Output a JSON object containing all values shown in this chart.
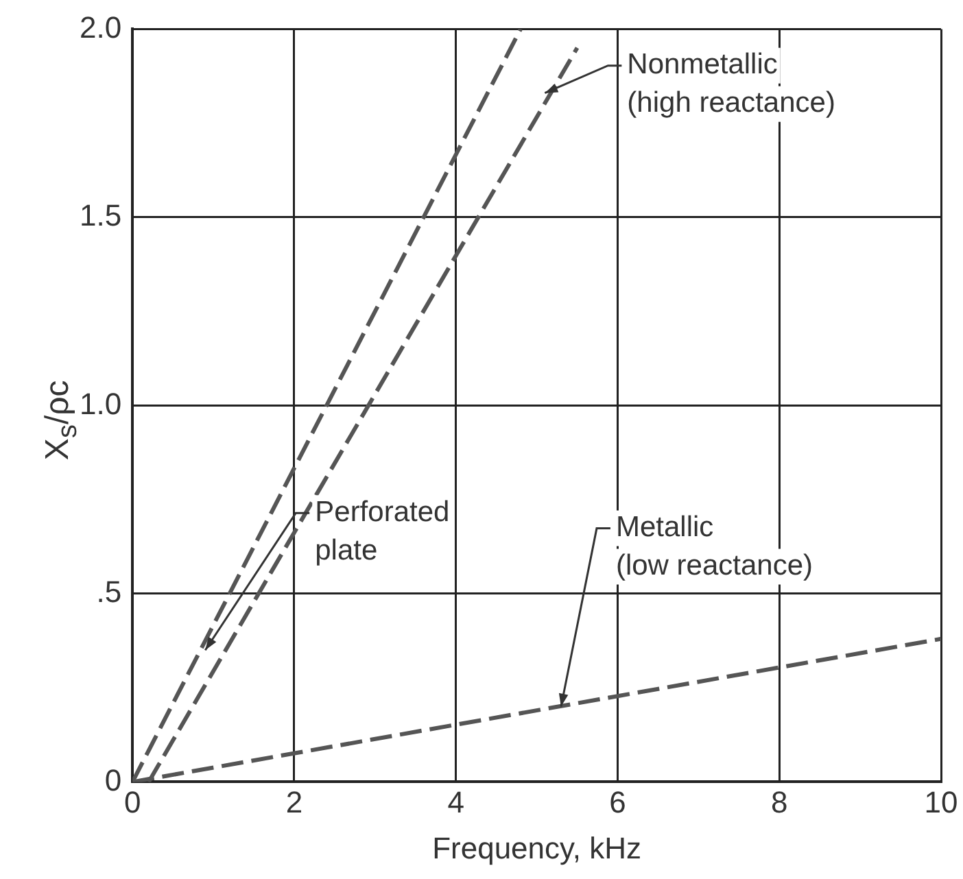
{
  "chart_data": {
    "type": "line",
    "xlabel": "Frequency, kHz",
    "ylabel": "X$_{s}$/ρc",
    "xlim": [
      0,
      10
    ],
    "ylim": [
      0,
      2.0
    ],
    "xticks": [
      0,
      2,
      4,
      6,
      8,
      10
    ],
    "yticks": [
      0,
      {
        "value": 0.5,
        "label": ".5"
      },
      {
        "value": 1.0,
        "label": "1.0"
      },
      1.5,
      {
        "value": 2.0,
        "label": "2.0"
      }
    ],
    "grid": true,
    "legend": false,
    "marker": "none",
    "line_style": "dashed",
    "series": [
      {
        "color": "#555555",
        "x": [
          0,
          4.8
        ],
        "values": [
          0,
          2.0
        ]
      },
      {
        "color": "#555555",
        "x": [
          0.2,
          5.5
        ],
        "values": [
          0,
          1.95
        ]
      },
      {
        "color": "#555555",
        "x": [
          0,
          10
        ],
        "values": [
          0,
          0.38
        ]
      }
    ],
    "annotations": [
      {
        "text": "Nonmetallic\n(high reactance)",
        "x": 5.1,
        "y": 1.83
      },
      {
        "text": "Perforated\nplate",
        "x": 0.9,
        "y": 0.35
      },
      {
        "text": "Metallic\n(low reactance)",
        "x": 5.3,
        "y": 0.2
      }
    ]
  }
}
